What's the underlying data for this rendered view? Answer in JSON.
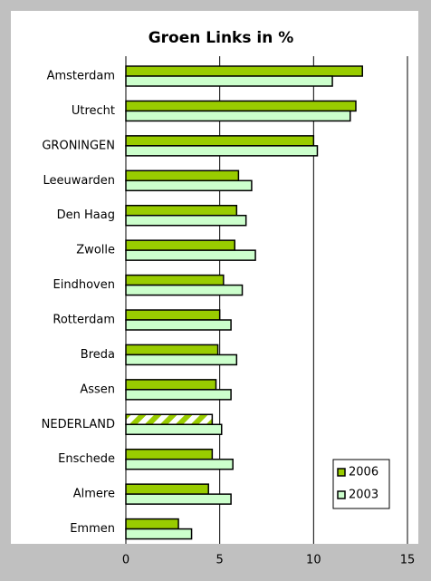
{
  "chart_data": {
    "type": "hbar",
    "title": "Groen Links in %",
    "categories": [
      "Amsterdam",
      "Utrecht",
      "GRONINGEN",
      "Leeuwarden",
      "Den Haag",
      "Zwolle",
      "Eindhoven",
      "Rotterdam",
      "Breda",
      "Assen",
      "NEDERLAND",
      "Enschede",
      "Almere",
      "Emmen"
    ],
    "series": [
      {
        "name": "2006",
        "color": "#99cc00",
        "hatched": [
          10
        ],
        "values": [
          12.6,
          12.25,
          10.0,
          6.0,
          5.9,
          5.8,
          5.2,
          5.0,
          4.9,
          4.8,
          4.6,
          4.6,
          4.4,
          2.8
        ]
      },
      {
        "name": "2003",
        "color": "#ccffcc",
        "values": [
          11.0,
          11.95,
          10.2,
          6.7,
          6.4,
          6.9,
          6.2,
          5.6,
          5.9,
          5.6,
          5.1,
          5.7,
          5.6,
          3.5
        ]
      }
    ],
    "xlim": [
      0,
      15
    ],
    "xticks": [
      0,
      5,
      10,
      15
    ],
    "grid": true,
    "legend": "lower right"
  }
}
